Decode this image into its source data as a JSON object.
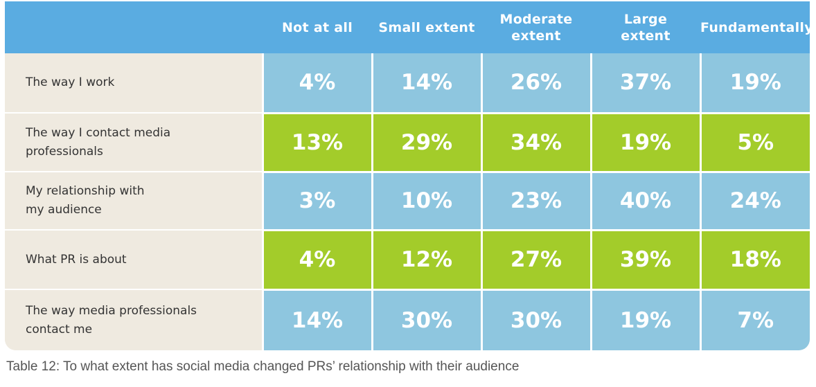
{
  "chart_data": {
    "type": "table",
    "columns": [
      "Not at all",
      "Small extent",
      "Moderate\nextent",
      "Large\nextent",
      "Fundamentally"
    ],
    "rows": [
      {
        "label": "The way I work",
        "values": [
          "4%",
          "14%",
          "26%",
          "37%",
          "19%"
        ]
      },
      {
        "label": "The way I contact media\nprofessionals",
        "values": [
          "13%",
          "29%",
          "34%",
          "19%",
          "5%"
        ]
      },
      {
        "label": "My relationship with\nmy audience",
        "values": [
          "3%",
          "10%",
          "23%",
          "40%",
          "24%"
        ]
      },
      {
        "label": "What PR is about",
        "values": [
          "4%",
          "12%",
          "27%",
          "39%",
          "18%"
        ]
      },
      {
        "label": "The way media professionals\ncontact me",
        "values": [
          "14%",
          "30%",
          "30%",
          "19%",
          "7%"
        ]
      }
    ],
    "row_colors": [
      "#8ec6df",
      "#a3cc2a",
      "#8ec6df",
      "#a3cc2a",
      "#8ec6df"
    ],
    "header_color": "#5aace1",
    "label_background": "#efeae0"
  },
  "caption": "Table 12: To what extent has social media changed PRs’ relationship with their audience"
}
